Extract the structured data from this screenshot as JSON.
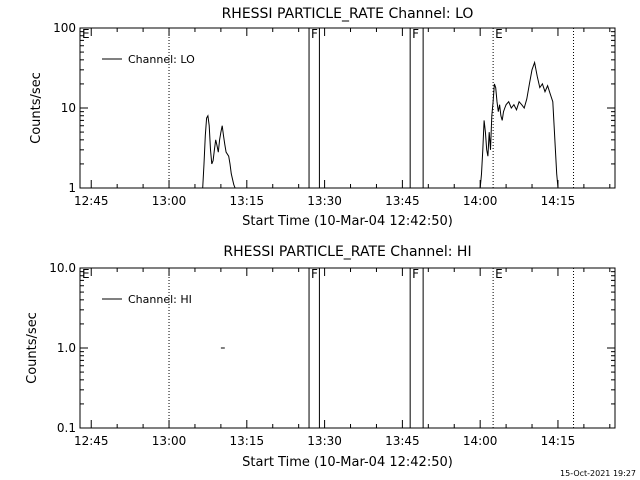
{
  "footer_timestamp": "15-Oct-2021 19:27",
  "chart_data": [
    {
      "type": "line",
      "title": "RHESSI PARTICLE_RATE Channel: LO",
      "xlabel": "Start Time (10-Mar-04 12:42:50)",
      "ylabel": "Counts/sec",
      "y_scale": "log",
      "ylim": [
        1,
        100
      ],
      "y_ticks": [
        {
          "value": 1,
          "label": "1"
        },
        {
          "value": 10,
          "label": "10"
        },
        {
          "value": 100,
          "label": "100"
        }
      ],
      "xlim": [
        "12:42:50",
        "14:26:00"
      ],
      "x_ticks": [
        "12:45",
        "13:00",
        "13:15",
        "13:30",
        "13:45",
        "14:00",
        "14:15"
      ],
      "legend": {
        "position": "top-left",
        "entries": [
          "Channel: LO"
        ]
      },
      "markers": [
        {
          "label": "E",
          "time": "12:42:50",
          "style": "dotted"
        },
        {
          "label": "",
          "time": "13:00:00",
          "style": "dotted"
        },
        {
          "label": "F",
          "time": "13:27:00",
          "style": "solid"
        },
        {
          "label": "",
          "time": "13:29:00",
          "style": "solid"
        },
        {
          "label": "F",
          "time": "13:46:30",
          "style": "solid"
        },
        {
          "label": "",
          "time": "13:49:00",
          "style": "solid"
        },
        {
          "label": "E",
          "time": "14:02:30",
          "style": "dotted"
        },
        {
          "label": "",
          "time": "14:18:00",
          "style": "dotted"
        }
      ],
      "series": [
        {
          "x": [
            "13:06:30",
            "13:06:45",
            "13:07:00",
            "13:07:15",
            "13:07:30",
            "13:07:45",
            "13:08:00",
            "13:08:15",
            "13:08:30",
            "13:08:45",
            "13:09:00",
            "13:09:15",
            "13:09:30",
            "13:09:45",
            "13:10:00",
            "13:10:15",
            "13:10:30",
            "13:10:45",
            "13:11:00",
            "13:11:30",
            "13:11:45",
            "13:12:00",
            "13:12:30",
            "13:12:45"
          ],
          "values": [
            1.0,
            2.0,
            4.5,
            7.5,
            8.0,
            6.0,
            3.0,
            2.0,
            2.2,
            3.0,
            4.0,
            3.4,
            2.8,
            4.0,
            5.0,
            6.0,
            4.5,
            3.5,
            2.8,
            2.5,
            2.0,
            1.5,
            1.1,
            1.0
          ]
        },
        {
          "x": [
            "14:00:00",
            "14:00:15",
            "14:00:30",
            "14:00:45",
            "14:01:00",
            "14:01:15",
            "14:01:30",
            "14:01:45",
            "14:02:00",
            "14:02:15",
            "14:02:30",
            "14:02:45",
            "14:03:00",
            "14:03:15",
            "14:03:30",
            "14:03:45",
            "14:04:00",
            "14:04:15",
            "14:04:30",
            "14:04:45",
            "14:05:00",
            "14:05:30",
            "14:06:00",
            "14:06:30",
            "14:07:00",
            "14:07:30",
            "14:08:00",
            "14:08:30",
            "14:09:00",
            "14:09:30",
            "14:10:00",
            "14:10:30",
            "14:11:00",
            "14:11:30",
            "14:12:00",
            "14:12:30",
            "14:13:00",
            "14:13:30",
            "14:14:00",
            "14:14:15",
            "14:14:30",
            "14:14:45",
            "14:15:00"
          ],
          "values": [
            1.0,
            1.5,
            3.0,
            7.0,
            5.0,
            3.0,
            2.5,
            5.0,
            3.0,
            8.0,
            12.0,
            20.0,
            18.0,
            12.0,
            9.0,
            11.0,
            8.0,
            7.0,
            9.0,
            10.0,
            11.0,
            12.0,
            10.0,
            11.0,
            9.5,
            12.0,
            11.0,
            10.0,
            13.0,
            20.0,
            30.0,
            37.0,
            25.0,
            18.0,
            20.0,
            16.0,
            19.0,
            15.0,
            12.0,
            6.0,
            3.0,
            1.5,
            1.0
          ]
        }
      ]
    },
    {
      "type": "line",
      "title": "RHESSI PARTICLE_RATE Channel: HI",
      "xlabel": "Start Time (10-Mar-04 12:42:50)",
      "ylabel": "Counts/sec",
      "y_scale": "log",
      "ylim": [
        0.1,
        10
      ],
      "y_ticks": [
        {
          "value": 0.1,
          "label": "0.1"
        },
        {
          "value": 1,
          "label": "1.0"
        },
        {
          "value": 10,
          "label": "10.0"
        }
      ],
      "xlim": [
        "12:42:50",
        "14:26:00"
      ],
      "x_ticks": [
        "12:45",
        "13:00",
        "13:15",
        "13:30",
        "13:45",
        "14:00",
        "14:15"
      ],
      "legend": {
        "position": "top-left",
        "entries": [
          "Channel: HI"
        ]
      },
      "markers": [
        {
          "label": "E",
          "time": "12:42:50",
          "style": "dotted"
        },
        {
          "label": "",
          "time": "13:00:00",
          "style": "dotted"
        },
        {
          "label": "F",
          "time": "13:27:00",
          "style": "solid"
        },
        {
          "label": "",
          "time": "13:29:00",
          "style": "solid"
        },
        {
          "label": "F",
          "time": "13:46:30",
          "style": "solid"
        },
        {
          "label": "",
          "time": "13:49:00",
          "style": "solid"
        },
        {
          "label": "E",
          "time": "14:02:30",
          "style": "dotted"
        },
        {
          "label": "",
          "time": "14:18:00",
          "style": "dotted"
        }
      ],
      "series": [
        {
          "x": [
            "13:10:00",
            "13:10:45"
          ],
          "values": [
            1.0,
            1.0
          ]
        }
      ]
    }
  ]
}
